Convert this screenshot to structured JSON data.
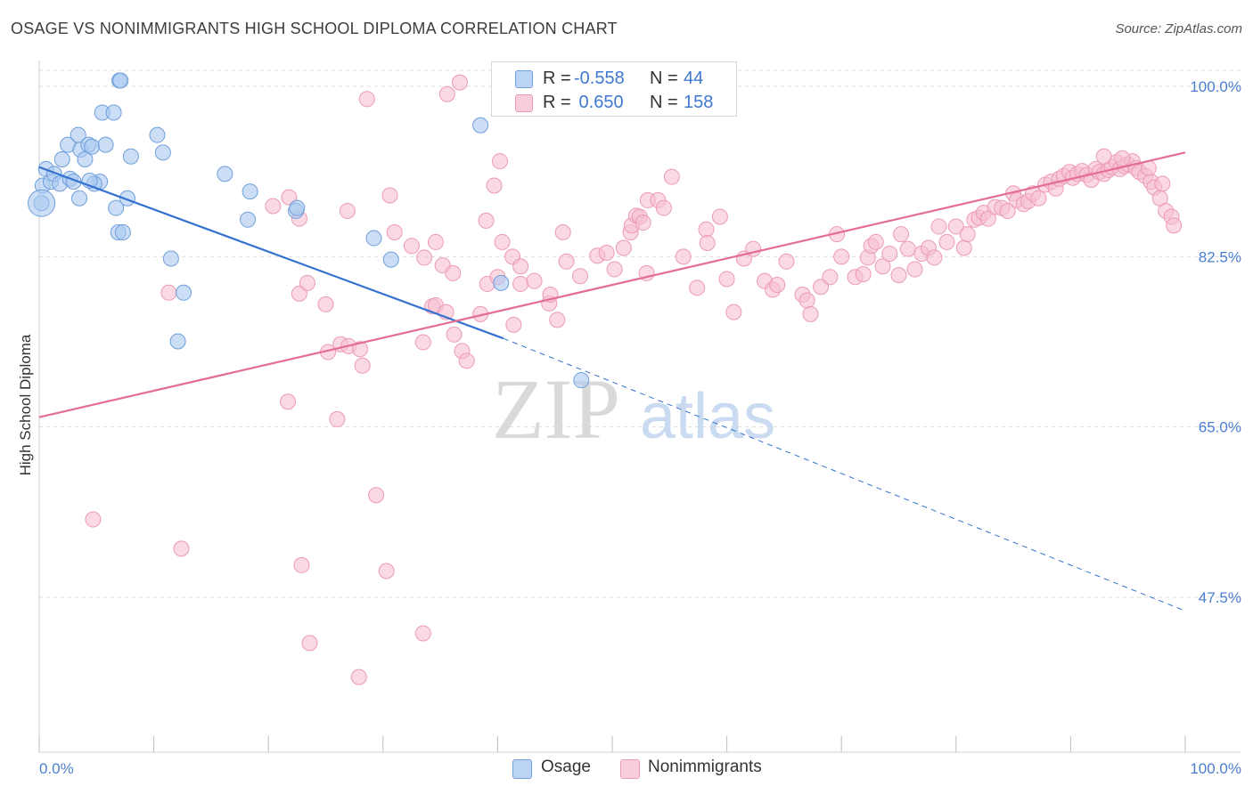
{
  "title": "OSAGE VS NONIMMIGRANTS HIGH SCHOOL DIPLOMA CORRELATION CHART",
  "source": "Source: ZipAtlas.com",
  "watermark": {
    "zip": "ZIP",
    "atlas": "atlas"
  },
  "legend": {
    "rows": [
      {
        "r_label": "R =",
        "r_value": "-0.558",
        "n_label": "N =",
        "n_value": "44"
      },
      {
        "r_label": "R =",
        "r_value": " 0.650",
        "n_label": "N =",
        "n_value": "158"
      }
    ]
  },
  "colors": {
    "osage_fill": "#a9c8f0",
    "osage_stroke": "#6f9fdc",
    "osage_line": "#3471d0",
    "nonimm_fill": "#f6bfd0",
    "nonimm_stroke": "#ec9ab5",
    "nonimm_line": "#e46d96",
    "tick": "#4a7fd0",
    "grid": "#dcdcdc"
  },
  "chart_data": {
    "type": "scatter",
    "xlabel": "",
    "ylabel": "High School Diploma",
    "xlim": [
      0,
      100
    ],
    "ylim": [
      32.5,
      102.5
    ],
    "x_tick_labels": [
      "0.0%",
      "100.0%"
    ],
    "y_ticks": [
      100.0,
      82.5,
      65.0,
      47.5
    ],
    "y_tick_labels": [
      "100.0%",
      "82.5%",
      "65.0%",
      "47.5%"
    ],
    "grid": true,
    "legend_placement": "bottom-center",
    "series": [
      {
        "name": "Osage",
        "r": -0.558,
        "n": 44,
        "trend": {
          "x0": 0,
          "y0": 91.7,
          "x1": 40.5,
          "y1": 74.1,
          "dashed_to_x": 100,
          "dashed_to_y": 46.1
        },
        "points": [
          [
            0.3,
            89.8
          ],
          [
            0.6,
            91.5
          ],
          [
            1.0,
            90.2
          ],
          [
            1.3,
            91.0
          ],
          [
            1.8,
            90.0
          ],
          [
            2.0,
            92.5
          ],
          [
            2.5,
            94.0
          ],
          [
            2.7,
            90.5
          ],
          [
            3.0,
            90.2
          ],
          [
            3.4,
            95.0
          ],
          [
            3.5,
            88.5
          ],
          [
            3.6,
            93.5
          ],
          [
            4.0,
            92.5
          ],
          [
            4.3,
            94.0
          ],
          [
            4.6,
            93.8
          ],
          [
            5.3,
            90.2
          ],
          [
            5.5,
            97.3
          ],
          [
            5.8,
            94.0
          ],
          [
            4.8,
            90.0
          ],
          [
            4.4,
            90.3
          ],
          [
            6.5,
            97.3
          ],
          [
            6.9,
            85.0
          ],
          [
            6.7,
            87.5
          ],
          [
            7.3,
            85.0
          ],
          [
            7.7,
            88.5
          ],
          [
            8.0,
            92.8
          ],
          [
            10.3,
            95.0
          ],
          [
            10.8,
            93.2
          ],
          [
            7.0,
            100.6
          ],
          [
            7.1,
            100.6
          ],
          [
            11.5,
            82.3
          ],
          [
            12.6,
            78.8
          ],
          [
            12.1,
            73.8
          ],
          [
            16.2,
            91.0
          ],
          [
            18.4,
            89.2
          ],
          [
            18.2,
            86.3
          ],
          [
            22.4,
            87.2
          ],
          [
            22.5,
            87.5
          ],
          [
            29.2,
            84.4
          ],
          [
            30.7,
            82.2
          ],
          [
            38.5,
            96.0
          ],
          [
            40.3,
            79.8
          ],
          [
            47.3,
            69.8
          ],
          [
            0.2,
            88.0
          ]
        ]
      },
      {
        "name": "Nonimmigrants",
        "r": 0.65,
        "n": 158,
        "trend": {
          "x0": 0,
          "y0": 66.0,
          "x1": 100,
          "y1": 93.2
        },
        "points": [
          [
            4.7,
            55.5
          ],
          [
            12.4,
            52.5
          ],
          [
            11.3,
            78.8
          ],
          [
            22.7,
            78.7
          ],
          [
            21.7,
            67.6
          ],
          [
            22.7,
            86.4
          ],
          [
            25.0,
            77.6
          ],
          [
            23.4,
            79.8
          ],
          [
            25.2,
            72.7
          ],
          [
            26.3,
            73.5
          ],
          [
            27.0,
            73.3
          ],
          [
            28.0,
            73.0
          ],
          [
            28.2,
            71.3
          ],
          [
            26.0,
            65.8
          ],
          [
            29.4,
            58.0
          ],
          [
            30.3,
            50.2
          ],
          [
            22.9,
            50.8
          ],
          [
            23.6,
            42.8
          ],
          [
            27.9,
            39.3
          ],
          [
            33.5,
            43.8
          ],
          [
            33.5,
            73.7
          ],
          [
            34.3,
            77.4
          ],
          [
            34.6,
            77.5
          ],
          [
            35.5,
            76.8
          ],
          [
            36.2,
            74.5
          ],
          [
            36.9,
            72.8
          ],
          [
            37.3,
            71.8
          ],
          [
            38.5,
            76.6
          ],
          [
            39.1,
            79.7
          ],
          [
            40.0,
            80.4
          ],
          [
            40.4,
            84.0
          ],
          [
            41.3,
            82.5
          ],
          [
            41.4,
            75.5
          ],
          [
            42.0,
            79.7
          ],
          [
            42.0,
            81.5
          ],
          [
            43.2,
            80.0
          ],
          [
            44.5,
            77.7
          ],
          [
            44.6,
            78.6
          ],
          [
            45.2,
            76.0
          ],
          [
            45.7,
            85.0
          ],
          [
            46.0,
            82.0
          ],
          [
            47.2,
            80.5
          ],
          [
            48.7,
            82.6
          ],
          [
            49.5,
            82.9
          ],
          [
            50.2,
            81.2
          ],
          [
            51.0,
            83.4
          ],
          [
            51.6,
            85.0
          ],
          [
            51.7,
            85.7
          ],
          [
            52.1,
            86.7
          ],
          [
            52.4,
            86.6
          ],
          [
            52.7,
            86.0
          ],
          [
            53.0,
            80.8
          ],
          [
            53.1,
            88.3
          ],
          [
            54.0,
            88.3
          ],
          [
            54.5,
            87.5
          ],
          [
            55.2,
            90.7
          ],
          [
            56.2,
            82.5
          ],
          [
            57.4,
            79.3
          ],
          [
            58.2,
            85.3
          ],
          [
            58.3,
            83.9
          ],
          [
            59.4,
            86.6
          ],
          [
            60.0,
            80.2
          ],
          [
            60.6,
            76.8
          ],
          [
            61.5,
            82.3
          ],
          [
            62.3,
            83.3
          ],
          [
            63.3,
            80.0
          ],
          [
            64.0,
            79.1
          ],
          [
            64.4,
            79.6
          ],
          [
            65.2,
            82.0
          ],
          [
            66.6,
            78.6
          ],
          [
            67.0,
            78.0
          ],
          [
            67.3,
            76.6
          ],
          [
            68.2,
            79.4
          ],
          [
            69.0,
            80.4
          ],
          [
            69.6,
            84.8
          ],
          [
            70.0,
            82.5
          ],
          [
            71.2,
            80.4
          ],
          [
            71.9,
            80.7
          ],
          [
            72.3,
            82.4
          ],
          [
            72.6,
            83.6
          ],
          [
            73.0,
            84.0
          ],
          [
            73.6,
            81.5
          ],
          [
            74.2,
            82.8
          ],
          [
            75.0,
            80.6
          ],
          [
            75.2,
            84.8
          ],
          [
            75.8,
            83.3
          ],
          [
            76.4,
            81.2
          ],
          [
            77.0,
            82.8
          ],
          [
            77.6,
            83.4
          ],
          [
            78.1,
            82.4
          ],
          [
            78.5,
            85.6
          ],
          [
            79.2,
            84.0
          ],
          [
            80.0,
            85.6
          ],
          [
            80.7,
            83.4
          ],
          [
            81.0,
            84.8
          ],
          [
            81.6,
            86.3
          ],
          [
            82.0,
            86.5
          ],
          [
            82.4,
            87.0
          ],
          [
            82.8,
            86.4
          ],
          [
            83.4,
            87.6
          ],
          [
            84.0,
            87.5
          ],
          [
            84.5,
            87.2
          ],
          [
            85.0,
            89.0
          ],
          [
            85.3,
            88.3
          ],
          [
            85.9,
            87.9
          ],
          [
            86.3,
            88.2
          ],
          [
            86.7,
            89.0
          ],
          [
            87.2,
            88.5
          ],
          [
            87.8,
            89.9
          ],
          [
            88.3,
            90.2
          ],
          [
            88.7,
            89.5
          ],
          [
            89.0,
            90.5
          ],
          [
            89.4,
            90.8
          ],
          [
            89.9,
            91.2
          ],
          [
            90.2,
            90.6
          ],
          [
            90.6,
            91.0
          ],
          [
            91.0,
            91.3
          ],
          [
            91.4,
            90.9
          ],
          [
            91.8,
            90.4
          ],
          [
            92.2,
            91.5
          ],
          [
            92.5,
            91.2
          ],
          [
            92.9,
            91.0
          ],
          [
            93.3,
            91.4
          ],
          [
            93.6,
            91.7
          ],
          [
            94.0,
            92.2
          ],
          [
            94.3,
            91.5
          ],
          [
            94.7,
            91.8
          ],
          [
            95.0,
            92.0
          ],
          [
            95.4,
            92.3
          ],
          [
            95.7,
            91.6
          ],
          [
            96.0,
            91.2
          ],
          [
            96.5,
            90.8
          ],
          [
            97.0,
            90.2
          ],
          [
            97.3,
            89.6
          ],
          [
            97.8,
            88.5
          ],
          [
            98.3,
            87.2
          ],
          [
            98.8,
            86.6
          ],
          [
            99.0,
            85.7
          ],
          [
            92.9,
            92.8
          ],
          [
            94.5,
            92.6
          ],
          [
            96.8,
            91.6
          ],
          [
            98.0,
            90.0
          ],
          [
            36.7,
            100.4
          ],
          [
            35.6,
            99.2
          ],
          [
            28.6,
            98.7
          ],
          [
            40.2,
            92.3
          ],
          [
            39.7,
            89.8
          ],
          [
            39.0,
            86.2
          ],
          [
            26.9,
            87.2
          ],
          [
            21.8,
            88.6
          ],
          [
            20.4,
            87.7
          ],
          [
            30.6,
            88.8
          ],
          [
            31.0,
            85.0
          ],
          [
            32.5,
            83.6
          ],
          [
            33.6,
            82.4
          ],
          [
            34.6,
            84.0
          ],
          [
            35.2,
            81.6
          ],
          [
            36.1,
            80.8
          ]
        ]
      }
    ]
  }
}
